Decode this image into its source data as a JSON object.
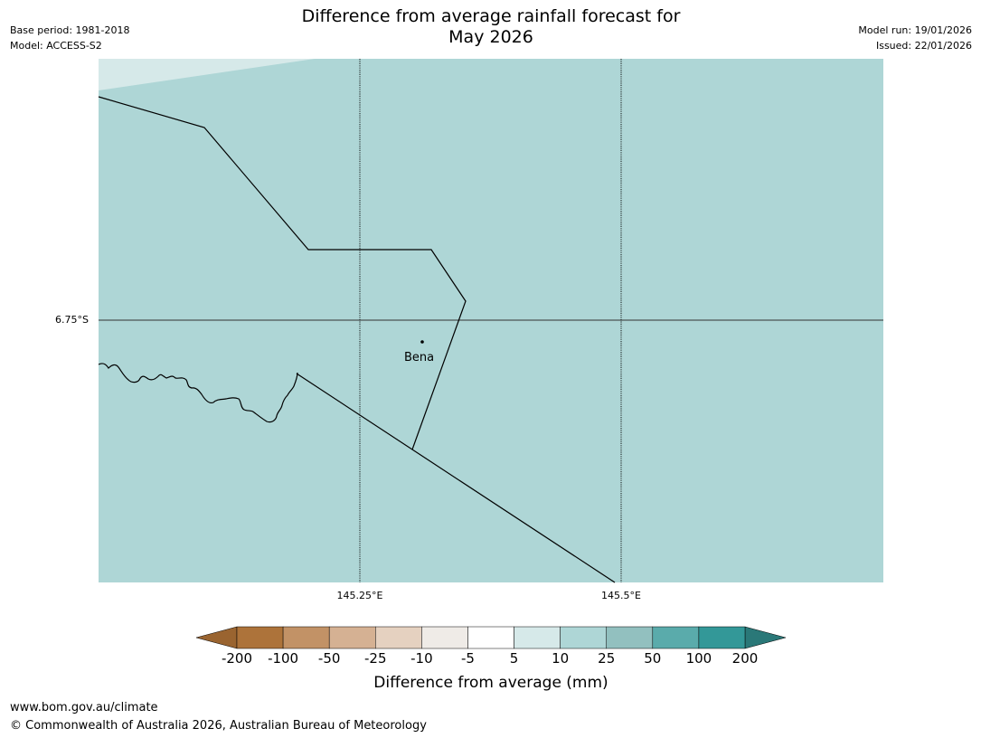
{
  "header": {
    "title_line1": "Difference from average rainfall forecast for",
    "title_line2": "May 2026",
    "base_period": "Base period: 1981-2018",
    "model": "Model: ACCESS-S2",
    "model_run": "Model run: 19/01/2026",
    "issued": "Issued: 22/01/2026"
  },
  "map": {
    "background_color": "#aed6d6",
    "corner_color": "#d6e9e9",
    "border_color": "#000000",
    "graticule_color": "#333333",
    "latitude_labels": [
      "6.75°S"
    ],
    "longitude_labels": [
      "145.25°E",
      "145.5°E"
    ],
    "place": {
      "name": "Bena"
    }
  },
  "colorbar": {
    "title": "Difference from average (mm)",
    "ticks": [
      "-200",
      "-100",
      "-50",
      "-25",
      "-10",
      "-5",
      "5",
      "10",
      "25",
      "50",
      "100",
      "200"
    ],
    "under_color": "#9a6430",
    "over_color": "#2a7878",
    "bins": [
      {
        "from": "-200",
        "to": "-100",
        "color": "#ad733a"
      },
      {
        "from": "-100",
        "to": "-50",
        "color": "#c29266"
      },
      {
        "from": "-50",
        "to": "-25",
        "color": "#d5b193"
      },
      {
        "from": "-25",
        "to": "-10",
        "color": "#e5d1c0"
      },
      {
        "from": "-10",
        "to": "-5",
        "color": "#efebe7"
      },
      {
        "from": "-5",
        "to": "5",
        "color": "#ffffff"
      },
      {
        "from": "5",
        "to": "10",
        "color": "#d6e9e9"
      },
      {
        "from": "10",
        "to": "25",
        "color": "#aed6d6"
      },
      {
        "from": "25",
        "to": "50",
        "color": "#92c0bf"
      },
      {
        "from": "50",
        "to": "100",
        "color": "#5aabab"
      },
      {
        "from": "100",
        "to": "200",
        "color": "#339898"
      }
    ]
  },
  "footer": {
    "url": "www.bom.gov.au/climate",
    "copyright": "© Commonwealth of Australia 2026, Australian Bureau of Meteorology"
  }
}
